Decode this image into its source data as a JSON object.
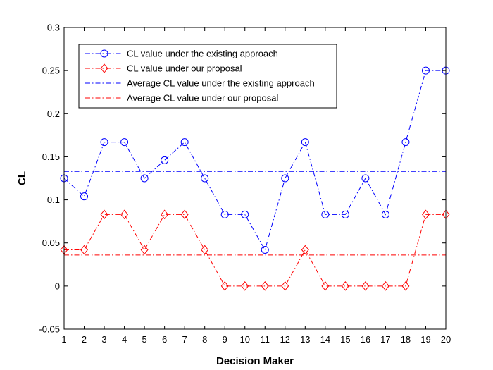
{
  "chart_data": {
    "type": "line",
    "title": "",
    "xlabel": "Decision Maker",
    "ylabel": "CL",
    "xlim": [
      1,
      20
    ],
    "ylim": [
      -0.05,
      0.3
    ],
    "x": [
      1,
      2,
      3,
      4,
      5,
      6,
      7,
      8,
      9,
      10,
      11,
      12,
      13,
      14,
      15,
      16,
      17,
      18,
      19,
      20
    ],
    "x_tick_labels": [
      "1",
      "2",
      "3",
      "4",
      "5",
      "6",
      "7",
      "8",
      "9",
      "10",
      "11",
      "12",
      "13",
      "14",
      "15",
      "16",
      "17",
      "18",
      "19",
      "20"
    ],
    "y_ticks": [
      -0.05,
      0,
      0.05,
      0.1,
      0.15,
      0.2,
      0.25,
      0.3
    ],
    "y_tick_labels": [
      "-0.05",
      "0",
      "0.05",
      "0.1",
      "0.15",
      "0.2",
      "0.25",
      "0.3"
    ],
    "grid": false,
    "legend_position": "top-left",
    "series": [
      {
        "name": "CL value under the existing approach",
        "color": "#0000ff",
        "marker": "circle",
        "line_style": "dashdot",
        "values": [
          0.125,
          0.104,
          0.167,
          0.167,
          0.125,
          0.146,
          0.167,
          0.125,
          0.083,
          0.083,
          0.042,
          0.125,
          0.167,
          0.083,
          0.083,
          0.125,
          0.083,
          0.167,
          0.25,
          0.25
        ]
      },
      {
        "name": "CL value under our proposal",
        "color": "#ff0000",
        "marker": "diamond",
        "line_style": "dashdot",
        "values": [
          0.042,
          0.042,
          0.083,
          0.083,
          0.042,
          0.083,
          0.083,
          0.042,
          0,
          0,
          0,
          0,
          0.042,
          0,
          0,
          0,
          0,
          0,
          0.083,
          0.083
        ]
      },
      {
        "name": "Average CL value under the existing approach",
        "color": "#0000ff",
        "marker": "none",
        "line_style": "dashdot",
        "constant": 0.133
      },
      {
        "name": "Average CL value under our proposal",
        "color": "#ff0000",
        "marker": "none",
        "line_style": "dashdot",
        "constant": 0.036
      }
    ]
  }
}
